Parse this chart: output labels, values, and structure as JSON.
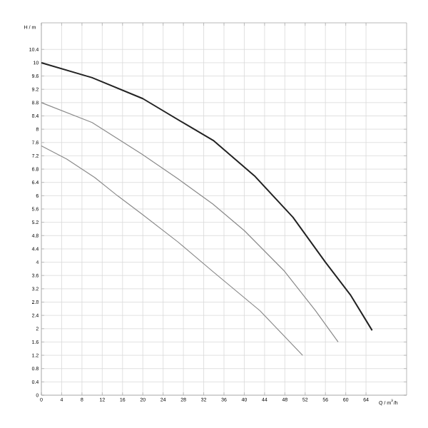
{
  "chart_data": {
    "type": "line",
    "xlabel": "Q / m$^{3}$/h",
    "ylabel": "H / m",
    "xlim": [
      0,
      72
    ],
    "ylim": [
      0,
      11.2
    ],
    "xticks": [
      0,
      4,
      8,
      12,
      16,
      20,
      24,
      28,
      32,
      36,
      40,
      44,
      48,
      52,
      56,
      60,
      64
    ],
    "yticks": [
      0,
      0.4,
      0.8,
      1.2,
      1.6,
      2,
      2.4,
      2.8,
      3.2,
      3.6,
      4,
      4.4,
      4.8,
      5.2,
      5.6,
      6,
      6.4,
      6.8,
      7.2,
      7.6,
      8,
      8.4,
      8.8,
      9.2,
      9.6,
      10,
      10.4
    ],
    "grid": true,
    "marker": "none",
    "line_style": "solid",
    "series": [
      {
        "color": "#222222",
        "x": [
          0,
          10,
          20,
          29,
          34,
          42,
          49.6,
          56,
          61,
          65.2
        ],
        "values": [
          10.0,
          9.55,
          8.92,
          8.1,
          7.65,
          6.6,
          5.35,
          4.0,
          3.0,
          1.95
        ]
      },
      {
        "color": "#8a8a8a",
        "x": [
          0,
          10,
          19.8,
          27,
          33.8,
          40,
          47.8,
          54,
          58.5
        ],
        "values": [
          8.8,
          8.2,
          7.25,
          6.5,
          5.75,
          4.95,
          3.75,
          2.55,
          1.6
        ]
      },
      {
        "color": "#8a8a8a",
        "x": [
          0,
          5,
          10.5,
          15,
          19.8,
          27,
          33.8,
          43.1,
          51.5
        ],
        "values": [
          7.5,
          7.1,
          6.55,
          6.0,
          5.45,
          4.6,
          3.72,
          2.54,
          1.2
        ]
      }
    ]
  }
}
